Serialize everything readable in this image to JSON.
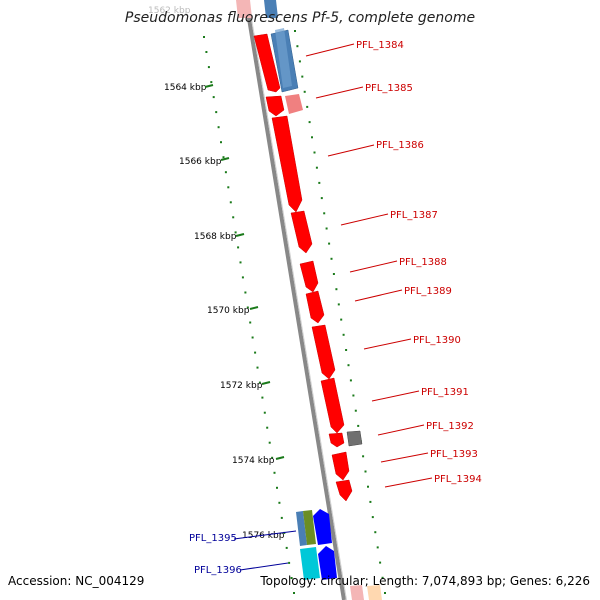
{
  "title": "Pseudomonas fluorescens Pf-5, complete genome",
  "accession": "Accession: NC_004129",
  "summary": "Topology: circular; Length: 7,074,893 bp; Genes: 6,226",
  "colors": {
    "forward_gene": "#ff0000",
    "forward_gene_light": "#f08080",
    "reverse_gene": "#4a7fb5",
    "blue_gene": "#0000ff",
    "cyan_gene": "#00c8d8",
    "olive_gene": "#6b8e23",
    "grey_gene": "#707070",
    "tick_mark": "#1a7a1a",
    "backbone": "#888888"
  },
  "scale": {
    "tick_labels": [
      "1564 kbp",
      "1566 kbp",
      "1568 kbp",
      "1570 kbp",
      "1572 kbp",
      "1574 kbp",
      "1576 kbp"
    ]
  },
  "genes_right": [
    {
      "label": "PFL_1384",
      "color": "#cc0000"
    },
    {
      "label": "PFL_1385",
      "color": "#cc0000"
    },
    {
      "label": "PFL_1386",
      "color": "#cc0000"
    },
    {
      "label": "PFL_1387",
      "color": "#cc0000"
    },
    {
      "label": "PFL_1388",
      "color": "#cc0000"
    },
    {
      "label": "PFL_1389",
      "color": "#cc0000"
    },
    {
      "label": "PFL_1390",
      "color": "#cc0000"
    },
    {
      "label": "PFL_1391",
      "color": "#cc0000"
    },
    {
      "label": "PFL_1392",
      "color": "#cc0000"
    },
    {
      "label": "PFL_1393",
      "color": "#cc0000"
    },
    {
      "label": "PFL_1394",
      "color": "#cc0000"
    }
  ],
  "genes_left": [
    {
      "label": "PFL_1395",
      "color": "#000099"
    },
    {
      "label": "PFL_1396",
      "color": "#000099"
    }
  ]
}
